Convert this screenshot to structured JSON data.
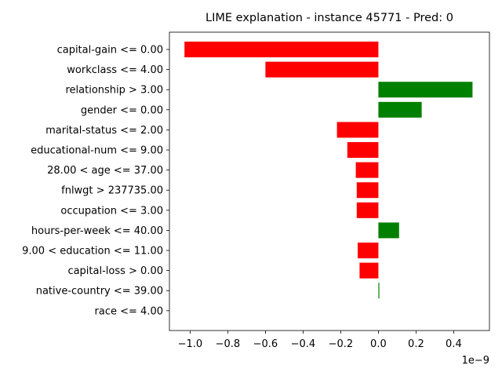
{
  "chart_data": {
    "type": "bar",
    "orientation": "horizontal",
    "title": "LIME explanation - instance 45771 - Pred: 0",
    "xlabel": "",
    "ylabel": "",
    "offset_label": "1e−9",
    "xlim": [
      -1.11,
      0.59
    ],
    "xticks": [
      -1.0,
      -0.8,
      -0.6,
      -0.4,
      -0.2,
      0.0,
      0.2,
      0.4
    ],
    "xtick_labels": [
      "−1.0",
      "−0.8",
      "−0.6",
      "−0.4",
      "−0.2",
      "0.0",
      "0.2",
      "0.4"
    ],
    "grid": false,
    "legend": "none",
    "colors": {
      "positive": "#008000",
      "negative": "#ff0000"
    },
    "categories": [
      "capital-gain <= 0.00",
      "workclass <= 4.00",
      "relationship > 3.00",
      "gender <= 0.00",
      "marital-status <= 2.00",
      "educational-num <= 9.00",
      "28.00 < age <= 37.00",
      "fnlwgt > 237735.00",
      "occupation <= 3.00",
      "hours-per-week <= 40.00",
      "9.00 < education <= 11.00",
      "capital-loss > 0.00",
      "native-country <= 39.00",
      "race <= 4.00"
    ],
    "values": [
      -1.03,
      -0.6,
      0.5,
      0.23,
      -0.22,
      -0.165,
      -0.12,
      -0.115,
      -0.115,
      0.11,
      -0.11,
      -0.1,
      0.005,
      0.0
    ]
  }
}
